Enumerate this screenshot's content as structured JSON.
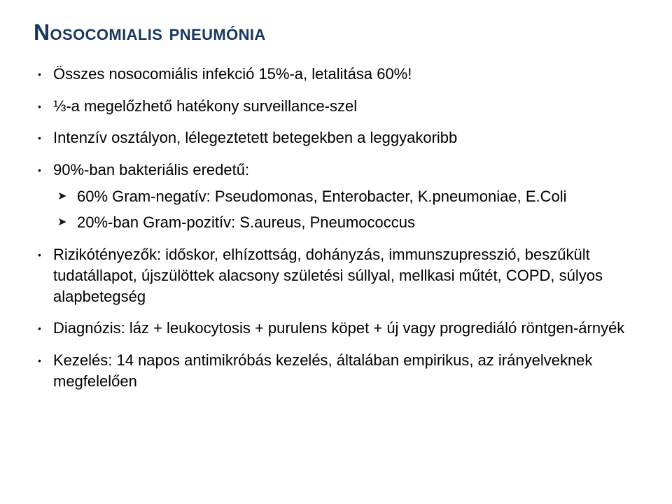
{
  "title": "Nosocomialis pneumónia",
  "title_color": "#17375e",
  "title_fontsize": 32,
  "body_fontsize": 22,
  "body_color": "#000000",
  "background_color": "#ffffff",
  "bullets": [
    {
      "text": "Összes nosocomiális infekció 15%-a, letalitása 60%!"
    },
    {
      "text": "⅓-a megelőzhető hatékony surveillance-szel"
    },
    {
      "text": "Intenzív osztályon, lélegeztetett betegekben a leggyakoribb"
    },
    {
      "text": "90%-ban bakteriális eredetű:",
      "children": [
        {
          "text": "60% Gram-negatív: Pseudomonas, Enterobacter, K.pneumoniae, E.Coli"
        },
        {
          "text": "20%-ban Gram-pozitív: S.aureus, Pneumococcus"
        }
      ]
    },
    {
      "text": "Rizikótényezők: időskor, elhízottság, dohányzás, immunszupresszió, beszűkült tudatállapot, újszülöttek alacsony születési súllyal, mellkasi műtét, COPD, súlyos alapbetegség"
    },
    {
      "text": "Diagnózis: láz + leukocytosis + purulens köpet + új vagy progrediáló röntgen-árnyék"
    },
    {
      "text": "Kezelés: 14 napos antimikróbás kezelés, általában empirikus, az irányelveknek megfelelően"
    }
  ]
}
